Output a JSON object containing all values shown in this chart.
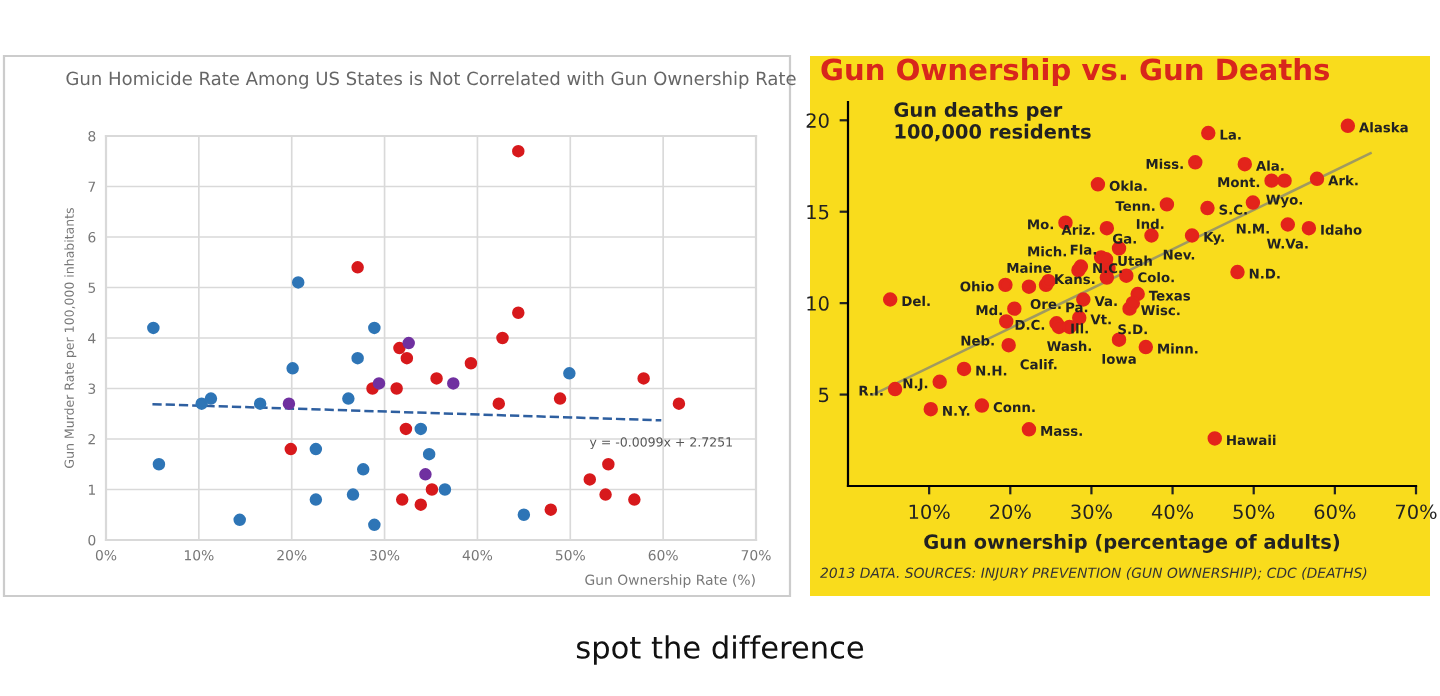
{
  "chart_data": [
    {
      "type": "scatter",
      "title": "Gun Homicide Rate Among US States is Not Correlated with Gun Ownership Rate",
      "xlabel": "Gun Ownership Rate (%)",
      "ylabel": "Gun Murder Rate per 100,000 inhabitants",
      "xlim": [
        0,
        70
      ],
      "xticks": [
        {
          "value": 0,
          "label": "0%"
        },
        {
          "value": 10,
          "label": "10%"
        },
        {
          "value": 20,
          "label": "20%"
        },
        {
          "value": 30,
          "label": "30%"
        },
        {
          "value": 40,
          "label": "40%"
        },
        {
          "value": 50,
          "label": "50%"
        },
        {
          "value": 60,
          "label": "60%"
        },
        {
          "value": 70,
          "label": "70%"
        }
      ],
      "ylim": [
        0,
        8
      ],
      "yticks": [
        0,
        1,
        2,
        3,
        4,
        5,
        6,
        7,
        8
      ],
      "grid": true,
      "marker": "circle",
      "legend": false,
      "series": [
        {
          "color": "#d7191c",
          "x": [
            19.9,
            27.1,
            28.7,
            31.3,
            31.6,
            32.3,
            32.4,
            31.9,
            33.9,
            35.1,
            35.6,
            44.4,
            44.4,
            42.7,
            39.3,
            42.3,
            48.9,
            57.9,
            61.7,
            47.9,
            52.1,
            54.1,
            53.8,
            56.9
          ],
          "values": [
            1.8,
            5.4,
            3.0,
            3.0,
            3.8,
            2.2,
            3.6,
            0.8,
            0.7,
            1.0,
            3.2,
            7.7,
            4.5,
            4.0,
            3.5,
            2.7,
            2.8,
            3.2,
            2.7,
            0.6,
            1.2,
            1.5,
            0.9,
            0.8
          ]
        },
        {
          "color": "#2e75b6",
          "x": [
            5.1,
            5.7,
            10.3,
            11.3,
            14.4,
            16.6,
            20.1,
            20.7,
            22.6,
            22.6,
            26.1,
            26.6,
            27.1,
            27.7,
            28.9,
            28.9,
            33.9,
            34.8,
            36.5,
            45.0,
            49.9
          ],
          "values": [
            4.2,
            1.5,
            2.7,
            2.8,
            0.4,
            2.7,
            3.4,
            5.1,
            1.8,
            0.8,
            2.8,
            0.9,
            3.6,
            1.4,
            4.2,
            0.3,
            2.2,
            1.7,
            1.0,
            0.5,
            3.3
          ]
        },
        {
          "color": "#7030a0",
          "x": [
            19.7,
            29.4,
            32.6,
            34.4,
            37.4
          ],
          "values": [
            2.7,
            3.1,
            3.9,
            1.3,
            3.1
          ]
        },
        {
          "type": "line",
          "marker": "none",
          "line_style": "dashed",
          "color": "#2e5fa0",
          "x": [
            5.0,
            59.8
          ],
          "values": [
            2.69,
            2.37
          ]
        }
      ],
      "annotations": [
        {
          "text": "y = -0.0099x + 2.7251",
          "x": 59.8,
          "y": 2.37
        },
        "spot the difference"
      ]
    },
    {
      "type": "scatter",
      "title": "Gun Ownership vs. Gun Deaths",
      "ylabel": "Gun deaths per\n100,000 residents",
      "xlabel": "Gun ownership (percentage of adults)",
      "xlim": [
        0,
        70
      ],
      "xticks": [
        {
          "value": 10,
          "label": "10%"
        },
        {
          "value": 20,
          "label": "20%"
        },
        {
          "value": 30,
          "label": "30%"
        },
        {
          "value": 40,
          "label": "40%"
        },
        {
          "value": 50,
          "label": "50%"
        },
        {
          "value": 60,
          "label": "60%"
        },
        {
          "value": 70,
          "label": "70%"
        }
      ],
      "ylim": [
        0,
        21
      ],
      "yticks": [
        5,
        10,
        15,
        20
      ],
      "grid": false,
      "marker": "circle",
      "legend": false,
      "series": [
        {
          "color": "#e3241b",
          "x": [
            5.2,
            5.8,
            11.3,
            10.2,
            14.3,
            16.5,
            22.3,
            19.8,
            19.5,
            20.5,
            19.4,
            22.3,
            24.4,
            24.7,
            26.8,
            31.9,
            30.8,
            28.4,
            28.7,
            31.2,
            33.4,
            32.1,
            31.9,
            25.7,
            26.0,
            27.3,
            28.5,
            29.0,
            33.4,
            34.7,
            61.6,
            44.4,
            42.8,
            48.9,
            53.8,
            52.2,
            57.8,
            39.3,
            44.3,
            49.9,
            37.4,
            42.4,
            56.8,
            54.2,
            34.3,
            31.8,
            48.0,
            35.7,
            35.1,
            36.7,
            45.2
          ],
          "values": [
            10.2,
            5.3,
            5.7,
            4.2,
            6.4,
            4.4,
            3.1,
            7.7,
            9.0,
            9.7,
            11.0,
            10.9,
            11.0,
            11.2,
            14.4,
            14.1,
            16.5,
            11.8,
            12.0,
            12.5,
            13.0,
            11.9,
            11.4,
            8.9,
            8.7,
            8.7,
            9.2,
            10.2,
            8.0,
            9.7,
            19.7,
            19.3,
            17.7,
            17.6,
            16.7,
            16.7,
            16.8,
            15.4,
            15.2,
            15.5,
            13.7,
            13.7,
            14.1,
            14.3,
            11.5,
            12.4,
            11.7,
            10.5,
            10.0,
            7.6,
            2.6
          ],
          "value_labels": [
            "Del.",
            "R.I.",
            "N.J.",
            "N.Y.",
            "N.H.",
            "Conn.",
            "Mass.",
            "Calif.",
            "Neb.",
            "Md.",
            "Ohio",
            "Maine",
            "Ore.",
            "Pa.",
            "Mo.",
            "Ariz.",
            "Okla.",
            "Mich.",
            "N.C.",
            "Ga.",
            "Ind.",
            "Fla.",
            "Kans.",
            "D.C.",
            "Ill.",
            "Wash.",
            "Vt.",
            "Va.",
            "Iowa",
            "Wisc.",
            "Alaska",
            "La.",
            "Miss.",
            "Ala.",
            "Wyo.",
            "Mont.",
            "Ark.",
            "Tenn.",
            "S.C.",
            "N.M.",
            "Nev.",
            "Ky.",
            "Idaho",
            "W.Va.",
            "Colo.",
            "Utah",
            "N.D.",
            "Texas",
            "S.D.",
            "Minn.",
            "Hawaii"
          ]
        },
        {
          "type": "line",
          "marker": "none",
          "line_style": "solid",
          "color": "#a09a60",
          "x": [
            3.1,
            64.4
          ],
          "values": [
            5.0,
            18.2
          ]
        }
      ],
      "annotations": [
        "2013 DATA. SOURCES: INJURY PREVENTION (GUN OWNERSHIP); CDC (DEATHS)"
      ]
    }
  ]
}
